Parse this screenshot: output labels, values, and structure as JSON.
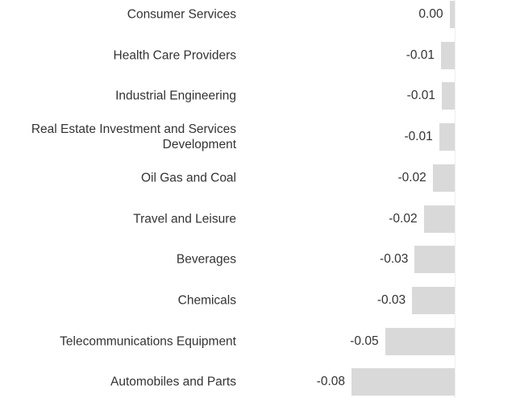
{
  "chart_data": {
    "type": "bar",
    "orientation": "horizontal",
    "categories": [
      "Consumer Services",
      "Health Care Providers",
      "Industrial Engineering",
      "Real Estate Investment and Services Development",
      "Oil Gas and Coal",
      "Travel and Leisure",
      "Beverages",
      "Chemicals",
      "Telecommunications Equipment",
      "Automobiles and Parts"
    ],
    "values": [
      -0.004,
      -0.0106,
      -0.01,
      -0.012,
      -0.017,
      -0.024,
      -0.031,
      -0.033,
      -0.054,
      -0.08
    ],
    "value_labels": [
      "0.00",
      "-0.01",
      "-0.01",
      "-0.01",
      "-0.02",
      "-0.02",
      "-0.03",
      "-0.03",
      "-0.05",
      "-0.08"
    ],
    "color": "#d9d9d9",
    "xlim": [
      -0.25,
      0
    ]
  }
}
